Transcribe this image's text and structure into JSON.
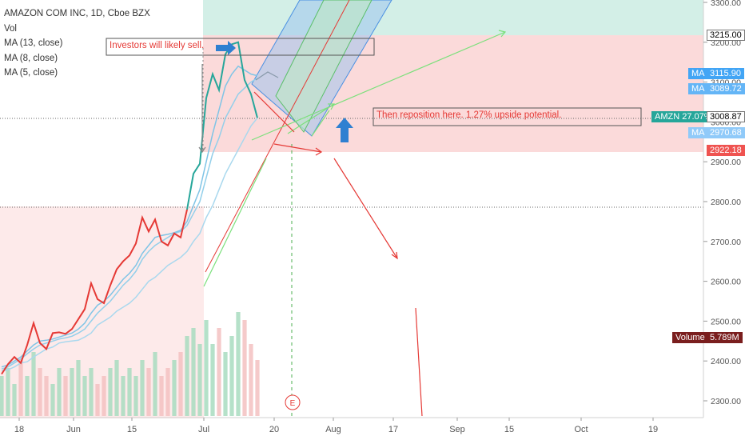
{
  "legend": {
    "title": "AMAZON COM INC, 1D, Cboe BZX",
    "vol": "Vol",
    "ma13": "MA (13, close)",
    "ma8": "MA (8, close)",
    "ma5": "MA (5, close)"
  },
  "annotations": {
    "sell_note": "Investors will likely sell.",
    "reposition_note": "Then reposition here. 1.27% upside potential.",
    "earnings_marker": "E"
  },
  "price_labels": {
    "top_resistance": "3215.00",
    "ma_13_tag": "MA",
    "ma_13_value": "3115.90",
    "ma_8_tag": "MA",
    "ma_8_value": "3089.72",
    "amzn_tag": "AMZN 27.07%",
    "amzn_value": "3008.87",
    "ma_5_tag": "MA",
    "ma_5_value": "2970.68",
    "support": "2922.18",
    "volume_tag": "Volume",
    "volume_value": "5.789M"
  },
  "colors": {
    "price_line": "#e53935",
    "price_line_recent": "#26a69a",
    "ma_light": "#9fd3ec",
    "red_zone": "#fbdada",
    "green_zone": "#cdeee6",
    "label_blue": "#42a5f5",
    "label_teal": "#26a69a",
    "label_red": "#ef5350",
    "label_volume": "#7a1e1e"
  },
  "chart_data": {
    "type": "line",
    "title": "AMAZON COM INC, 1D, Cboe BZX",
    "ylim": [
      2250,
      3315
    ],
    "y_ticks": [
      2300,
      2400,
      2500,
      2600,
      2700,
      2800,
      2900,
      3000,
      3100,
      3200,
      3300
    ],
    "y_tick_labels": [
      "2300.00",
      "2400.00",
      "2500.00",
      "2600.00",
      "2700.00",
      "2800.00",
      "2900.00",
      "3000.00",
      "3100.00",
      "3200.00",
      "3300.00"
    ],
    "x_tick_labels": [
      "18",
      "Jun",
      "15",
      "Jul",
      "20",
      "Aug",
      "17",
      "Sep",
      "15",
      "Oct",
      "19"
    ],
    "series": [
      {
        "name": "AMAZON COM INC",
        "values": [
          2367,
          2392,
          2410,
          2395,
          2440,
          2495,
          2445,
          2430,
          2470,
          2472,
          2468,
          2480,
          2505,
          2530,
          2595,
          2555,
          2545,
          2590,
          2630,
          2650,
          2665,
          2695,
          2760,
          2725,
          2755,
          2700,
          2690,
          2720,
          2710,
          2780,
          2870,
          2895,
          3060,
          3120,
          3080,
          3170,
          3195,
          3200,
          3105,
          3070,
          3010
        ]
      },
      {
        "name": "MA (13, close)",
        "values": [
          2375,
          2378,
          2385,
          2395,
          2398,
          2410,
          2420,
          2430,
          2435,
          2445,
          2448,
          2450,
          2452,
          2460,
          2470,
          2490,
          2500,
          2510,
          2525,
          2535,
          2545,
          2560,
          2580,
          2600,
          2610,
          2625,
          2640,
          2650,
          2660,
          2675,
          2700,
          2720,
          2760,
          2790,
          2830,
          2870,
          2900,
          2930,
          2960,
          2990,
          3010
        ]
      },
      {
        "name": "MA (8, close)",
        "values": [
          2380,
          2385,
          2395,
          2405,
          2418,
          2430,
          2440,
          2445,
          2450,
          2455,
          2458,
          2462,
          2470,
          2480,
          2500,
          2520,
          2535,
          2550,
          2570,
          2590,
          2605,
          2625,
          2655,
          2675,
          2690,
          2700,
          2710,
          2720,
          2725,
          2740,
          2770,
          2800,
          2860,
          2920,
          2960,
          3010,
          3040,
          3070,
          3085,
          3100,
          3110
        ]
      },
      {
        "name": "MA (5, close)",
        "values": [
          2385,
          2390,
          2400,
          2410,
          2425,
          2440,
          2450,
          2452,
          2455,
          2460,
          2465,
          2470,
          2480,
          2495,
          2520,
          2540,
          2550,
          2565,
          2585,
          2605,
          2620,
          2640,
          2670,
          2690,
          2710,
          2715,
          2718,
          2722,
          2728,
          2750,
          2790,
          2830,
          2900,
          2970,
          3030,
          3090,
          3120,
          3140,
          3130,
          3120,
          3116
        ]
      }
    ],
    "volume": [
      5,
      6,
      4,
      7,
      5,
      8,
      6,
      5,
      4,
      6,
      5,
      6,
      7,
      5,
      6,
      4,
      5,
      6,
      7,
      5,
      6,
      5,
      7,
      6,
      8,
      5,
      6,
      7,
      8,
      10,
      11,
      9,
      12,
      9,
      11,
      8,
      10,
      13,
      12,
      9,
      7
    ],
    "zones": [
      {
        "from": 3210,
        "to": 3315,
        "color": "green"
      },
      {
        "from": 2915,
        "to": 3210,
        "color": "red"
      }
    ],
    "legend_position": "top-left",
    "grid": false
  }
}
